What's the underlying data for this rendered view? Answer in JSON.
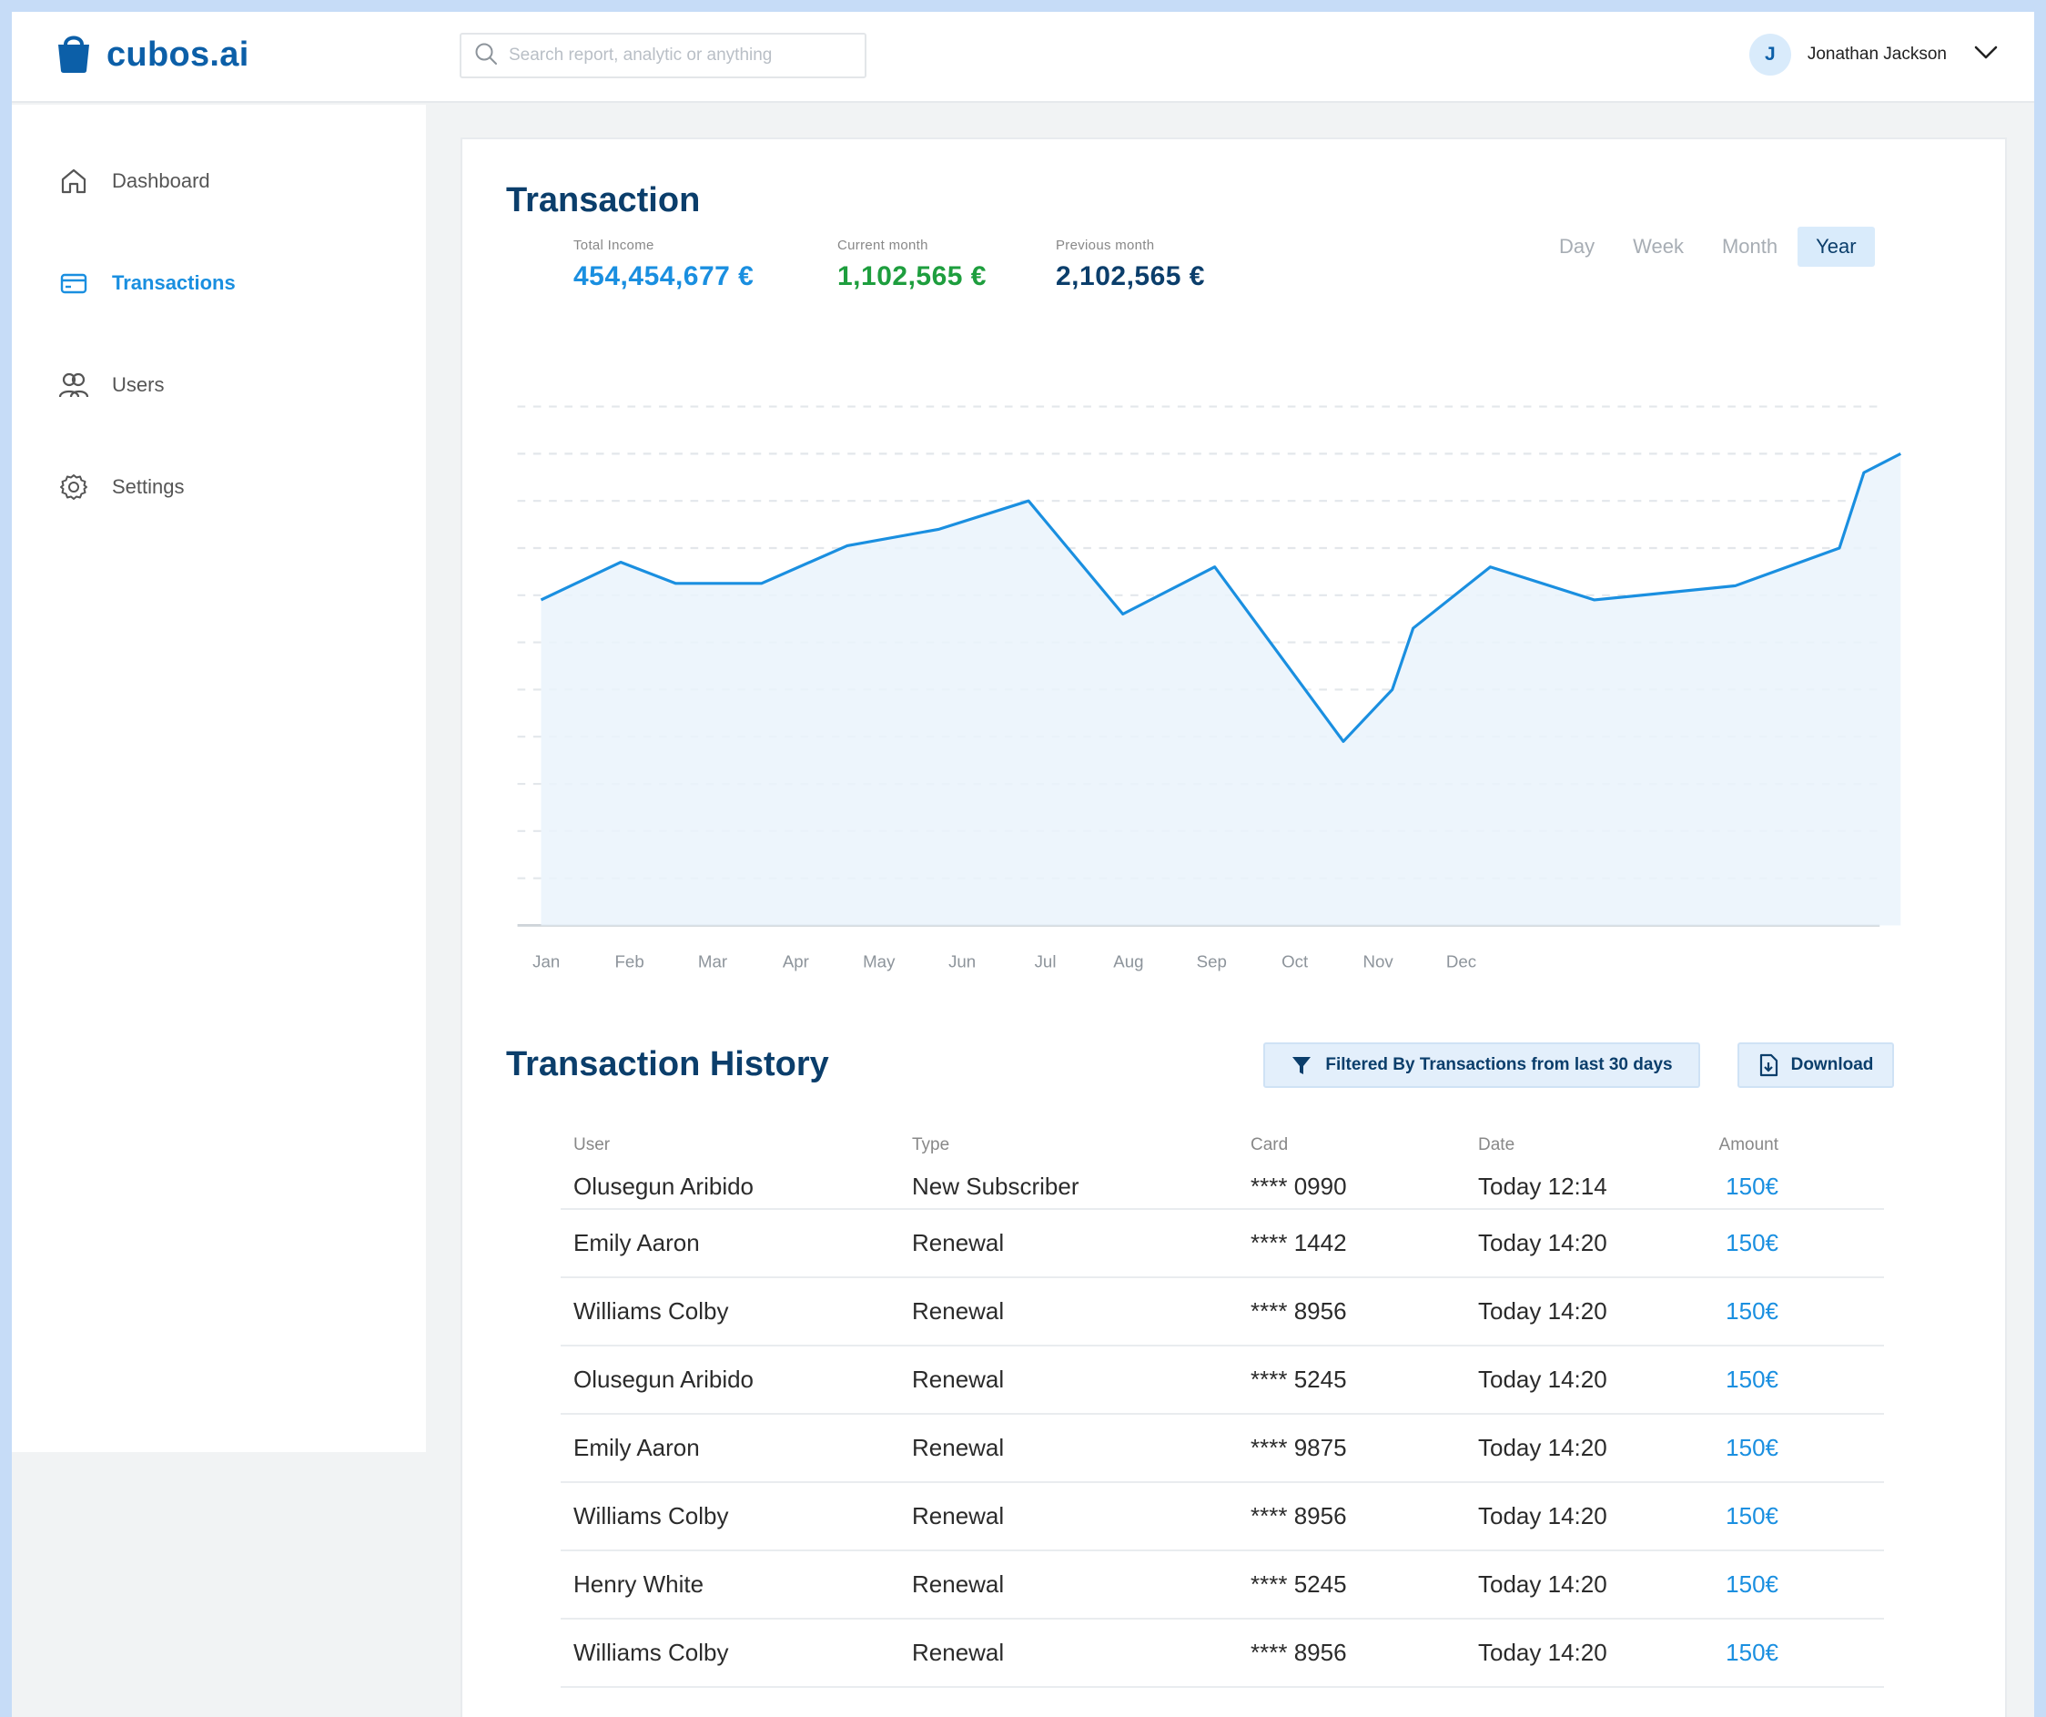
{
  "app": {
    "name": "cubos.ai",
    "brand_color": "#0c5fa8",
    "accent_color": "#1a8fe0"
  },
  "search": {
    "placeholder": "Search report, analytic or anything",
    "icon": "search-icon"
  },
  "user": {
    "initial": "J",
    "name": "Jonathan Jackson",
    "menu_icon": "chevron-down-icon"
  },
  "sidebar": {
    "items": [
      {
        "label": "Dashboard",
        "icon": "home-icon",
        "active": false
      },
      {
        "label": "Transactions",
        "icon": "card-icon",
        "active": true
      },
      {
        "label": "Users",
        "icon": "users-icon",
        "active": false
      },
      {
        "label": "Settings",
        "icon": "gear-icon",
        "active": false
      }
    ]
  },
  "transaction": {
    "title": "Transaction",
    "stats": [
      {
        "label": "Total Income",
        "value": "454,454,677 €",
        "color": "#1a8fe0"
      },
      {
        "label": "Current month",
        "value": "1,102,565 €",
        "color": "#1e9e3e"
      },
      {
        "label": "Previous month",
        "value": "2,102,565 €",
        "color": "#0b3e6b"
      }
    ],
    "periods": [
      "Day",
      "Week",
      "Month",
      "Year"
    ],
    "active_period": "Year"
  },
  "chart_data": {
    "type": "area",
    "x": [
      0,
      0.65,
      1.1,
      1.8,
      2.5,
      3.25,
      3.98,
      4.75,
      5.5,
      6.55,
      6.95,
      7.12,
      7.75,
      8.6,
      9.75,
      10.6,
      10.8,
      11.1
    ],
    "y": [
      69,
      77,
      72.5,
      72.5,
      80.5,
      84,
      90,
      66,
      76,
      39,
      50,
      63,
      76,
      69,
      72,
      80,
      96,
      100
    ],
    "x_tick_labels": [
      "Jan",
      "Feb",
      "Mar",
      "Apr",
      "May",
      "Jun",
      "Jul",
      "Aug",
      "Sep",
      "Oct",
      "Nov",
      "Dec"
    ],
    "ylim": [
      0,
      110
    ],
    "grid": true,
    "title": "",
    "xlabel": "",
    "ylabel": "",
    "line_color": "#1a8fe0"
  },
  "history": {
    "title": "Transaction History",
    "filter_label": "Filtered By Transactions from last 30 days",
    "filter_icon": "filter-icon",
    "download_label": "Download",
    "download_icon": "download-file-icon",
    "columns": [
      "User",
      "Type",
      "Card",
      "Date",
      "Amount"
    ],
    "rows": [
      {
        "user": "Olusegun Aribido",
        "type": "New Subscriber",
        "card": "**** 0990",
        "date": "Today 12:14",
        "amount": "150€"
      },
      {
        "user": "Emily Aaron",
        "type": "Renewal",
        "card": "**** 1442",
        "date": "Today 14:20",
        "amount": "150€"
      },
      {
        "user": "Williams Colby",
        "type": "Renewal",
        "card": "**** 8956",
        "date": "Today 14:20",
        "amount": "150€"
      },
      {
        "user": "Olusegun Aribido",
        "type": "Renewal",
        "card": "**** 5245",
        "date": "Today 14:20",
        "amount": "150€"
      },
      {
        "user": "Emily Aaron",
        "type": "Renewal",
        "card": "**** 9875",
        "date": "Today 14:20",
        "amount": "150€"
      },
      {
        "user": "Williams Colby",
        "type": "Renewal",
        "card": "**** 8956",
        "date": "Today 14:20",
        "amount": "150€"
      },
      {
        "user": "Henry White",
        "type": "Renewal",
        "card": "**** 5245",
        "date": "Today 14:20",
        "amount": "150€"
      },
      {
        "user": "Williams Colby",
        "type": "Renewal",
        "card": "**** 8956",
        "date": "Today 14:20",
        "amount": "150€"
      }
    ]
  }
}
